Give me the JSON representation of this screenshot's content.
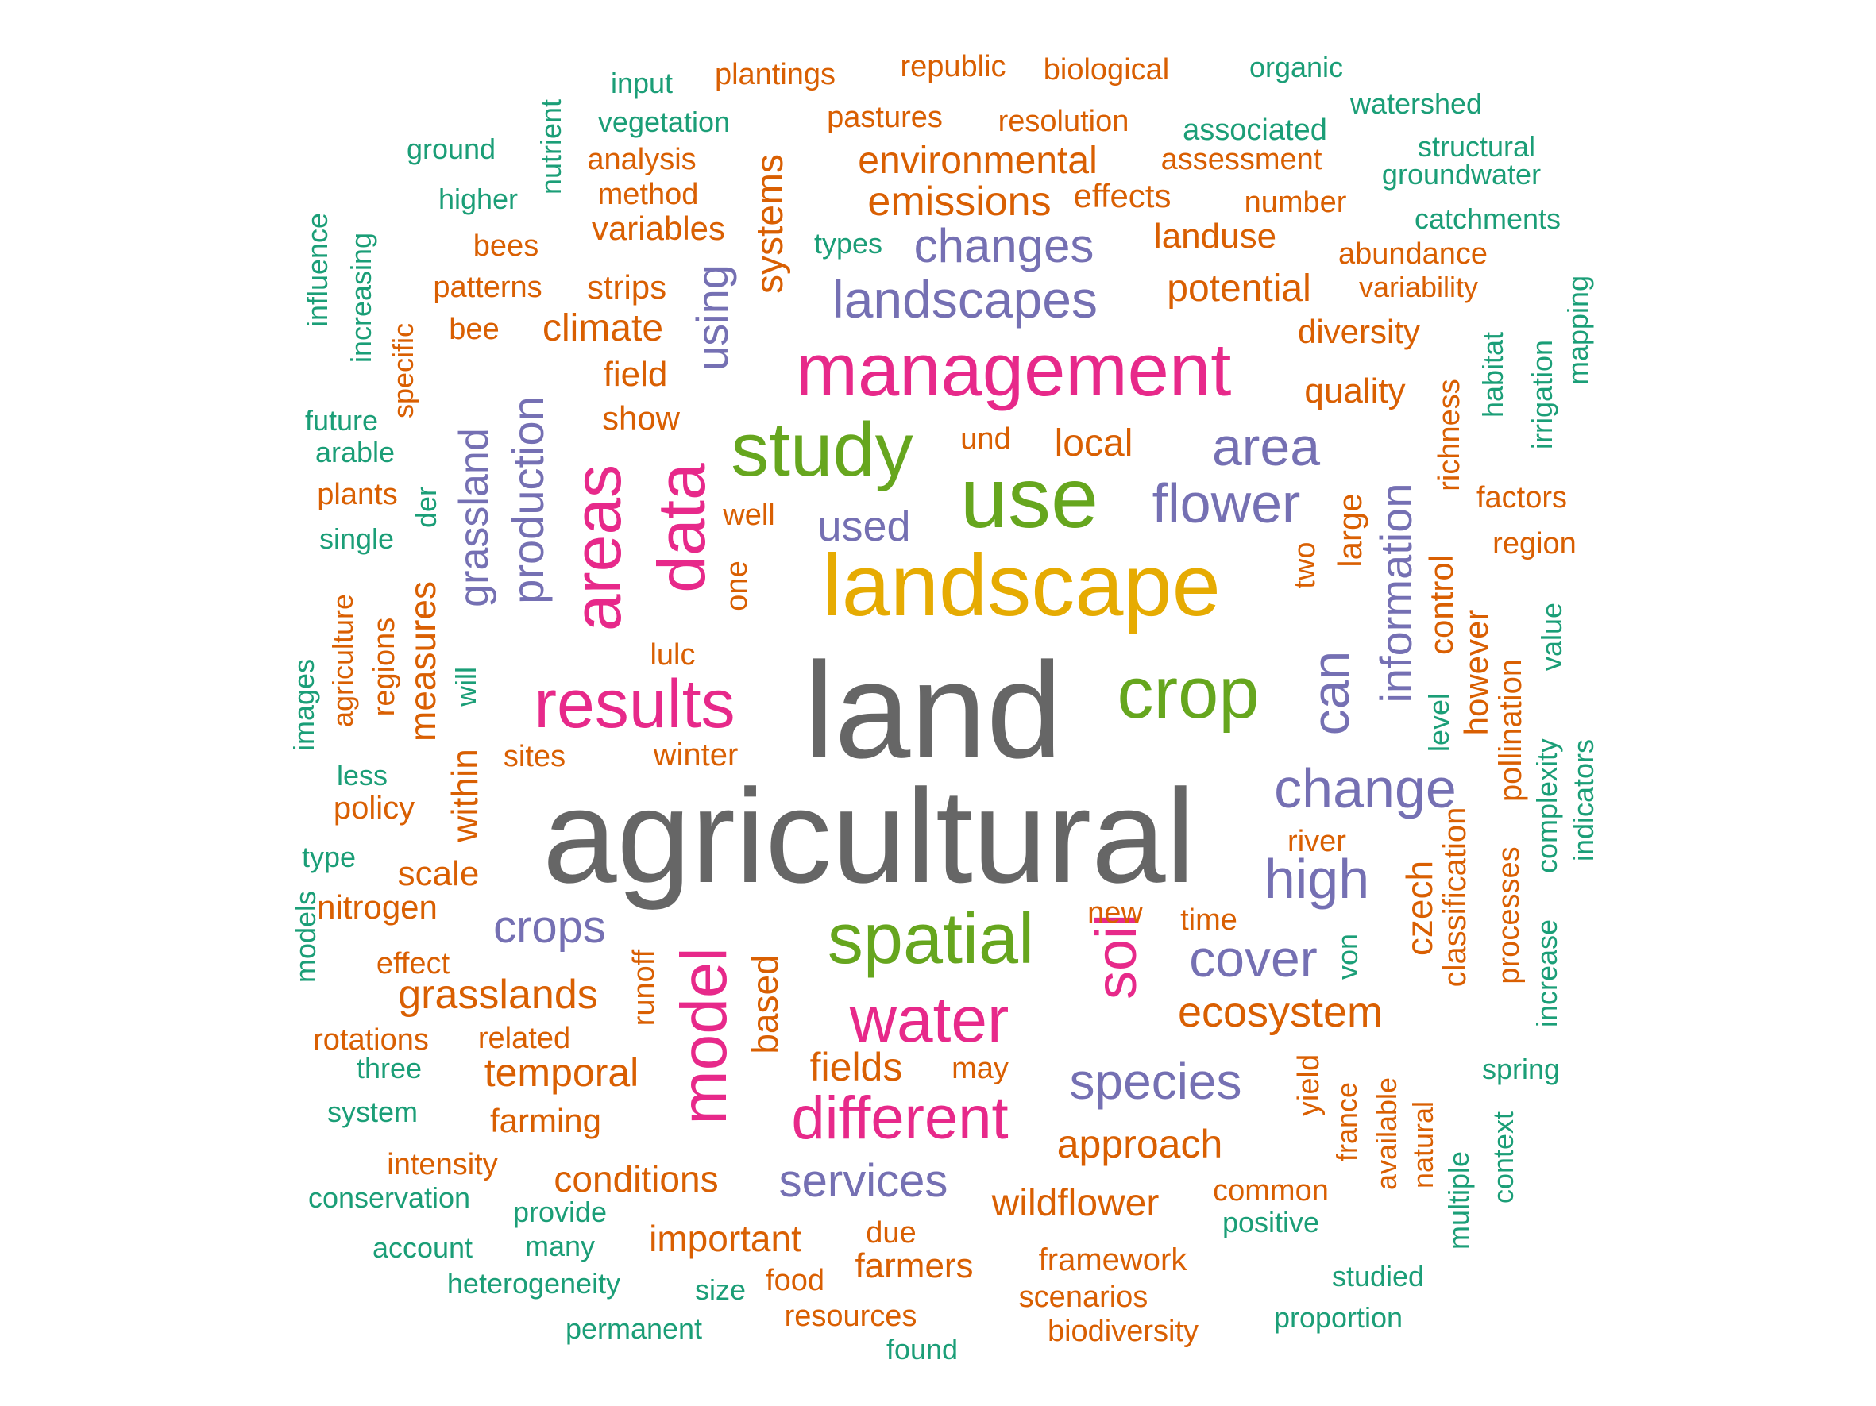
{
  "palette": {
    "gray": "#666666",
    "orange": "#D95F02",
    "teal": "#1B9E77",
    "purple": "#7570B3",
    "pink": "#E7298A",
    "green": "#66A61E",
    "gold": "#E6AB02"
  },
  "words": [
    {
      "text": "agricultural",
      "color": "gray",
      "weight": 100
    },
    {
      "text": "land",
      "color": "gray",
      "weight": 92
    },
    {
      "text": "landscape",
      "color": "gold",
      "weight": 62
    },
    {
      "text": "management",
      "color": "pink",
      "weight": 50
    },
    {
      "text": "use",
      "color": "green",
      "weight": 56
    },
    {
      "text": "study",
      "color": "green",
      "weight": 50
    },
    {
      "text": "crop",
      "color": "green",
      "weight": 50
    },
    {
      "text": "spatial",
      "color": "green",
      "weight": 46
    },
    {
      "text": "results",
      "color": "pink",
      "weight": 46
    },
    {
      "text": "areas",
      "color": "pink",
      "weight": 45
    },
    {
      "text": "data",
      "color": "pink",
      "weight": 45
    },
    {
      "text": "model",
      "color": "pink",
      "weight": 44
    },
    {
      "text": "water",
      "color": "pink",
      "weight": 44
    },
    {
      "text": "different",
      "color": "pink",
      "weight": 40
    },
    {
      "text": "soil",
      "color": "pink",
      "weight": 38
    },
    {
      "text": "landscapes",
      "color": "purple",
      "weight": 34
    },
    {
      "text": "area",
      "color": "purple",
      "weight": 36
    },
    {
      "text": "flower",
      "color": "purple",
      "weight": 36
    },
    {
      "text": "change",
      "color": "purple",
      "weight": 36
    },
    {
      "text": "high",
      "color": "purple",
      "weight": 36
    },
    {
      "text": "cover",
      "color": "purple",
      "weight": 34
    },
    {
      "text": "can",
      "color": "purple",
      "weight": 34
    },
    {
      "text": "information",
      "color": "purple",
      "weight": 29
    },
    {
      "text": "species",
      "color": "purple",
      "weight": 32
    },
    {
      "text": "crops",
      "color": "purple",
      "weight": 30
    },
    {
      "text": "services",
      "color": "purple",
      "weight": 30
    },
    {
      "text": "changes",
      "color": "purple",
      "weight": 31
    },
    {
      "text": "production",
      "color": "purple",
      "weight": 29
    },
    {
      "text": "grassland",
      "color": "purple",
      "weight": 27
    },
    {
      "text": "using",
      "color": "purple",
      "weight": 28
    },
    {
      "text": "used",
      "color": "purple",
      "weight": 27
    },
    {
      "text": "ecosystem",
      "color": "orange",
      "weight": 27
    },
    {
      "text": "emissions",
      "color": "orange",
      "weight": 26
    },
    {
      "text": "systems",
      "color": "orange",
      "weight": 24
    },
    {
      "text": "environmental",
      "color": "orange",
      "weight": 24
    },
    {
      "text": "grasslands",
      "color": "orange",
      "weight": 26
    },
    {
      "text": "temporal",
      "color": "orange",
      "weight": 25
    },
    {
      "text": "approach",
      "color": "orange",
      "weight": 25
    },
    {
      "text": "wildflower",
      "color": "orange",
      "weight": 24
    },
    {
      "text": "fields",
      "color": "orange",
      "weight": 25
    },
    {
      "text": "climate",
      "color": "orange",
      "weight": 24
    },
    {
      "text": "potential",
      "color": "orange",
      "weight": 24
    },
    {
      "text": "local",
      "color": "orange",
      "weight": 24
    },
    {
      "text": "measures",
      "color": "orange",
      "weight": 23
    },
    {
      "text": "within",
      "color": "orange",
      "weight": 23
    },
    {
      "text": "czech",
      "color": "orange",
      "weight": 23
    },
    {
      "text": "based",
      "color": "orange",
      "weight": 23
    },
    {
      "text": "conditions",
      "color": "orange",
      "weight": 23
    },
    {
      "text": "important",
      "color": "orange",
      "weight": 23
    },
    {
      "text": "landuse",
      "color": "orange",
      "weight": 22
    },
    {
      "text": "field",
      "color": "orange",
      "weight": 22
    },
    {
      "text": "quality",
      "color": "orange",
      "weight": 22
    },
    {
      "text": "scale",
      "color": "orange",
      "weight": 22
    },
    {
      "text": "farmers",
      "color": "orange",
      "weight": 22
    },
    {
      "text": "diversity",
      "color": "orange",
      "weight": 21
    },
    {
      "text": "effects",
      "color": "orange",
      "weight": 21
    },
    {
      "text": "variables",
      "color": "orange",
      "weight": 21
    },
    {
      "text": "strips",
      "color": "orange",
      "weight": 21
    },
    {
      "text": "show",
      "color": "orange",
      "weight": 21
    },
    {
      "text": "nitrogen",
      "color": "orange",
      "weight": 21
    },
    {
      "text": "farming",
      "color": "orange",
      "weight": 21
    },
    {
      "text": "large",
      "color": "orange",
      "weight": 21
    },
    {
      "text": "control",
      "color": "orange",
      "weight": 21
    },
    {
      "text": "however",
      "color": "orange",
      "weight": 21
    },
    {
      "text": "pollination",
      "color": "orange",
      "weight": 20
    },
    {
      "text": "framework",
      "color": "orange",
      "weight": 20
    },
    {
      "text": "classification",
      "color": "orange",
      "weight": 20
    },
    {
      "text": "processes",
      "color": "orange",
      "weight": 19
    },
    {
      "text": "richness",
      "color": "orange",
      "weight": 19
    },
    {
      "text": "analysis",
      "color": "orange",
      "weight": 19
    },
    {
      "text": "method",
      "color": "orange",
      "weight": 19
    },
    {
      "text": "pastures",
      "color": "orange",
      "weight": 19
    },
    {
      "text": "resolution",
      "color": "orange",
      "weight": 19
    },
    {
      "text": "assessment",
      "color": "orange",
      "weight": 19
    },
    {
      "text": "plantings",
      "color": "orange",
      "weight": 19
    },
    {
      "text": "republic",
      "color": "orange",
      "weight": 19
    },
    {
      "text": "biological",
      "color": "orange",
      "weight": 19
    },
    {
      "text": "number",
      "color": "orange",
      "weight": 19
    },
    {
      "text": "abundance",
      "color": "orange",
      "weight": 19
    },
    {
      "text": "variability",
      "color": "orange",
      "weight": 18
    },
    {
      "text": "factors",
      "color": "orange",
      "weight": 19
    },
    {
      "text": "region",
      "color": "orange",
      "weight": 19
    },
    {
      "text": "patterns",
      "color": "orange",
      "weight": 19
    },
    {
      "text": "bees",
      "color": "orange",
      "weight": 19
    },
    {
      "text": "bee",
      "color": "orange",
      "weight": 19
    },
    {
      "text": "plants",
      "color": "orange",
      "weight": 19
    },
    {
      "text": "well",
      "color": "orange",
      "weight": 19
    },
    {
      "text": "und",
      "color": "orange",
      "weight": 19
    },
    {
      "text": "one",
      "color": "orange",
      "weight": 19
    },
    {
      "text": "two",
      "color": "orange",
      "weight": 19
    },
    {
      "text": "lulc",
      "color": "orange",
      "weight": 19
    },
    {
      "text": "sites",
      "color": "orange",
      "weight": 19
    },
    {
      "text": "winter",
      "color": "orange",
      "weight": 20
    },
    {
      "text": "regions",
      "color": "orange",
      "weight": 19
    },
    {
      "text": "agriculture",
      "color": "orange",
      "weight": 18
    },
    {
      "text": "policy",
      "color": "orange",
      "weight": 20
    },
    {
      "text": "specific",
      "color": "orange",
      "weight": 18
    },
    {
      "text": "effect",
      "color": "orange",
      "weight": 19
    },
    {
      "text": "rotations",
      "color": "orange",
      "weight": 19
    },
    {
      "text": "related",
      "color": "orange",
      "weight": 19
    },
    {
      "text": "runoff",
      "color": "orange",
      "weight": 19
    },
    {
      "text": "river",
      "color": "orange",
      "weight": 19
    },
    {
      "text": "new",
      "color": "orange",
      "weight": 19
    },
    {
      "text": "time",
      "color": "orange",
      "weight": 19
    },
    {
      "text": "may",
      "color": "orange",
      "weight": 19
    },
    {
      "text": "yield",
      "color": "orange",
      "weight": 19
    },
    {
      "text": "france",
      "color": "orange",
      "weight": 18
    },
    {
      "text": "available",
      "color": "orange",
      "weight": 18
    },
    {
      "text": "natural",
      "color": "orange",
      "weight": 18
    },
    {
      "text": "intensity",
      "color": "orange",
      "weight": 19
    },
    {
      "text": "common",
      "color": "orange",
      "weight": 19
    },
    {
      "text": "due",
      "color": "orange",
      "weight": 19
    },
    {
      "text": "food",
      "color": "orange",
      "weight": 19
    },
    {
      "text": "scenarios",
      "color": "orange",
      "weight": 19
    },
    {
      "text": "resources",
      "color": "orange",
      "weight": 19
    },
    {
      "text": "biodiversity",
      "color": "orange",
      "weight": 19
    },
    {
      "text": "organic",
      "color": "teal",
      "weight": 18
    },
    {
      "text": "watershed",
      "color": "teal",
      "weight": 18
    },
    {
      "text": "associated",
      "color": "teal",
      "weight": 19
    },
    {
      "text": "structural",
      "color": "teal",
      "weight": 18
    },
    {
      "text": "groundwater",
      "color": "teal",
      "weight": 18
    },
    {
      "text": "catchments",
      "color": "teal",
      "weight": 18
    },
    {
      "text": "input",
      "color": "teal",
      "weight": 18
    },
    {
      "text": "vegetation",
      "color": "teal",
      "weight": 18
    },
    {
      "text": "ground",
      "color": "teal",
      "weight": 18
    },
    {
      "text": "higher",
      "color": "teal",
      "weight": 18
    },
    {
      "text": "nutrient",
      "color": "teal",
      "weight": 18
    },
    {
      "text": "types",
      "color": "teal",
      "weight": 18
    },
    {
      "text": "influence",
      "color": "teal",
      "weight": 18
    },
    {
      "text": "increasing",
      "color": "teal",
      "weight": 18
    },
    {
      "text": "future",
      "color": "teal",
      "weight": 18
    },
    {
      "text": "arable",
      "color": "teal",
      "weight": 18
    },
    {
      "text": "single",
      "color": "teal",
      "weight": 18
    },
    {
      "text": "der",
      "color": "teal",
      "weight": 18
    },
    {
      "text": "images",
      "color": "teal",
      "weight": 18
    },
    {
      "text": "will",
      "color": "teal",
      "weight": 18
    },
    {
      "text": "less",
      "color": "teal",
      "weight": 18
    },
    {
      "text": "type",
      "color": "teal",
      "weight": 18
    },
    {
      "text": "models",
      "color": "teal",
      "weight": 18
    },
    {
      "text": "three",
      "color": "teal",
      "weight": 18
    },
    {
      "text": "system",
      "color": "teal",
      "weight": 18
    },
    {
      "text": "conservation",
      "color": "teal",
      "weight": 18
    },
    {
      "text": "provide",
      "color": "teal",
      "weight": 18
    },
    {
      "text": "account",
      "color": "teal",
      "weight": 18
    },
    {
      "text": "many",
      "color": "teal",
      "weight": 18
    },
    {
      "text": "heterogeneity",
      "color": "teal",
      "weight": 18
    },
    {
      "text": "size",
      "color": "teal",
      "weight": 18
    },
    {
      "text": "permanent",
      "color": "teal",
      "weight": 18
    },
    {
      "text": "found",
      "color": "teal",
      "weight": 18
    },
    {
      "text": "positive",
      "color": "teal",
      "weight": 18
    },
    {
      "text": "studied",
      "color": "teal",
      "weight": 18
    },
    {
      "text": "proportion",
      "color": "teal",
      "weight": 18
    },
    {
      "text": "habitat",
      "color": "teal",
      "weight": 18
    },
    {
      "text": "irrigation",
      "color": "teal",
      "weight": 18
    },
    {
      "text": "mapping",
      "color": "teal",
      "weight": 18
    },
    {
      "text": "value",
      "color": "teal",
      "weight": 18
    },
    {
      "text": "level",
      "color": "teal",
      "weight": 18
    },
    {
      "text": "complexity",
      "color": "teal",
      "weight": 18
    },
    {
      "text": "indicators",
      "color": "teal",
      "weight": 18
    },
    {
      "text": "increase",
      "color": "teal",
      "weight": 18
    },
    {
      "text": "spring",
      "color": "teal",
      "weight": 18
    },
    {
      "text": "von",
      "color": "teal",
      "weight": 18
    },
    {
      "text": "multiple",
      "color": "teal",
      "weight": 18
    },
    {
      "text": "context",
      "color": "teal",
      "weight": 18
    }
  ]
}
